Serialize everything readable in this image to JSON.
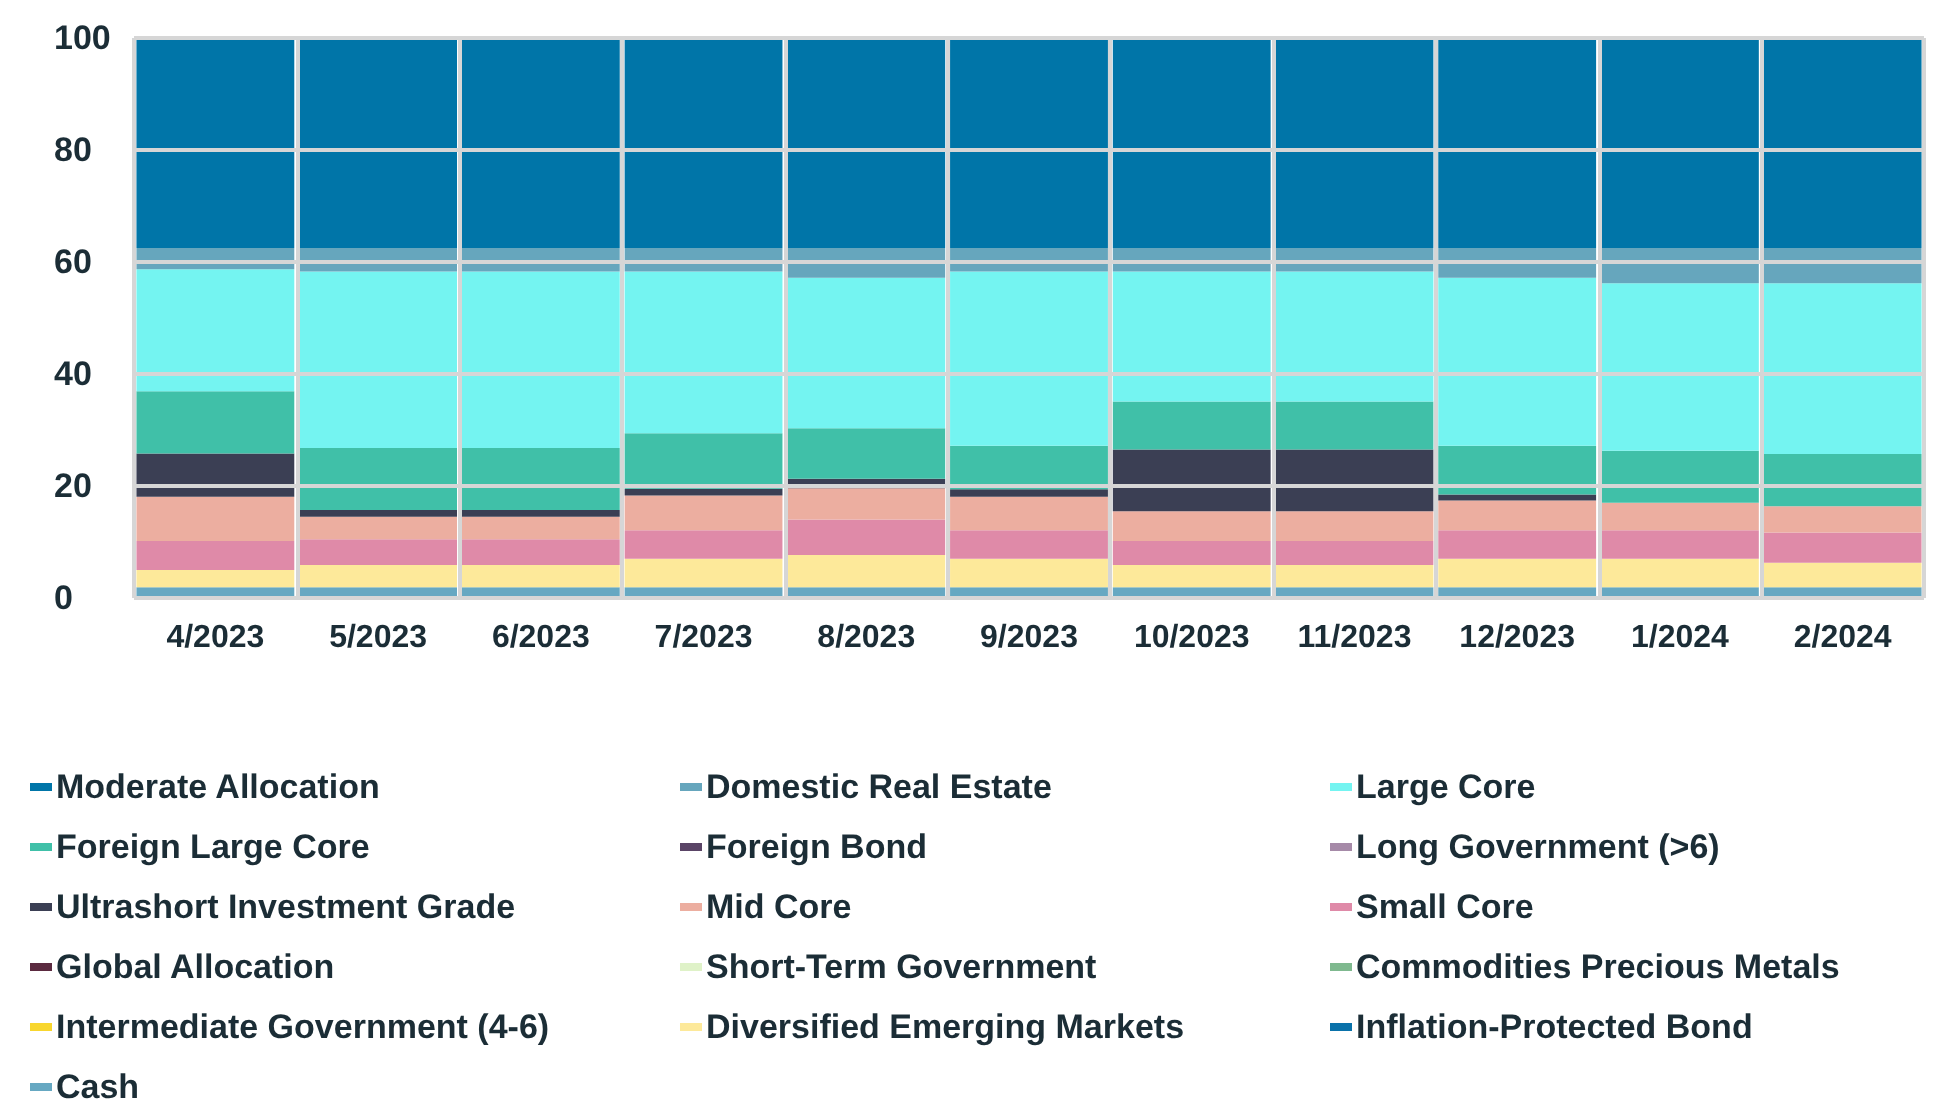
{
  "chart_data": {
    "type": "bar",
    "stacked": true,
    "categories": [
      "4/2023",
      "5/2023",
      "6/2023",
      "7/2023",
      "8/2023",
      "9/2023",
      "10/2023",
      "11/2023",
      "12/2023",
      "1/2024",
      "2/2024"
    ],
    "ylim": [
      0,
      100
    ],
    "yticks": [
      0,
      20,
      40,
      60,
      80,
      100
    ],
    "grid": true,
    "legend": "bottom",
    "series": [
      {
        "name": "Cash",
        "color": "#66a8c2",
        "values": [
          1.9,
          1.9,
          1.9,
          1.9,
          1.9,
          1.9,
          1.9,
          1.9,
          1.9,
          1.9,
          1.9
        ]
      },
      {
        "name": "Inflation-Protected Bond",
        "color": "#0a72aa",
        "values": [
          null,
          null,
          null,
          null,
          null,
          null,
          null,
          null,
          null,
          null,
          null
        ]
      },
      {
        "name": "Diversified Emerging Markets",
        "color": "#fde99a",
        "values": [
          3.1,
          4.0,
          4.0,
          5.1,
          5.8,
          5.1,
          4.0,
          4.0,
          5.1,
          5.1,
          4.4
        ]
      },
      {
        "name": "Intermediate Government (4-6)",
        "color": "#f8d62e",
        "values": [
          null,
          null,
          null,
          null,
          null,
          null,
          null,
          null,
          null,
          null,
          null
        ]
      },
      {
        "name": "Commodities Precious Metals",
        "color": "#7fb98f",
        "values": [
          null,
          null,
          null,
          null,
          null,
          null,
          null,
          null,
          null,
          null,
          null
        ]
      },
      {
        "name": "Short-Term Government",
        "color": "#dff2c8",
        "values": [
          null,
          null,
          null,
          null,
          null,
          null,
          null,
          null,
          null,
          null,
          null
        ]
      },
      {
        "name": "Global Allocation",
        "color": "#5b2a40",
        "values": [
          null,
          null,
          null,
          null,
          null,
          null,
          null,
          null,
          null,
          null,
          null
        ]
      },
      {
        "name": "Small Core",
        "color": "#df8aa8",
        "values": [
          5.2,
          4.6,
          4.6,
          5.1,
          6.3,
          5.1,
          4.3,
          4.3,
          5.1,
          5.1,
          5.4
        ]
      },
      {
        "name": "Mid Core",
        "color": "#ecaea0",
        "values": [
          7.9,
          4.0,
          4.0,
          6.2,
          5.6,
          6.0,
          5.3,
          5.3,
          5.3,
          4.9,
          4.7
        ]
      },
      {
        "name": "Ultrashort Investment Grade",
        "color": "#3b3f54",
        "values": [
          7.7,
          1.2,
          1.2,
          1.2,
          1.7,
          1.3,
          11.0,
          11.0,
          1.1,
          null,
          null
        ]
      },
      {
        "name": "Long Government (>6)",
        "color": "#a68aa8",
        "values": [
          null,
          null,
          null,
          null,
          null,
          null,
          null,
          null,
          null,
          null,
          null
        ]
      },
      {
        "name": "Foreign Bond",
        "color": "#5a4466",
        "values": [
          null,
          null,
          null,
          null,
          null,
          null,
          null,
          null,
          null,
          null,
          null
        ]
      },
      {
        "name": "Foreign Large Core",
        "color": "#40c0a8",
        "values": [
          11.1,
          11.1,
          11.1,
          9.9,
          9.0,
          7.8,
          8.6,
          8.6,
          8.7,
          9.3,
          9.3
        ]
      },
      {
        "name": "Large Core",
        "color": "#74f4f1",
        "values": [
          21.8,
          31.5,
          31.5,
          28.9,
          26.9,
          31.1,
          23.2,
          23.2,
          30.0,
          29.9,
          30.5
        ]
      },
      {
        "name": "Domestic Real Estate",
        "color": "#66a6bd",
        "values": [
          3.8,
          4.2,
          4.2,
          4.2,
          5.3,
          4.2,
          4.2,
          4.2,
          5.3,
          6.3,
          6.3
        ]
      },
      {
        "name": "Moderate Allocation",
        "color": "#0075a8",
        "values": [
          37.5,
          37.5,
          37.5,
          37.5,
          37.5,
          37.5,
          37.5,
          37.5,
          37.5,
          37.5,
          37.5
        ]
      }
    ]
  }
}
